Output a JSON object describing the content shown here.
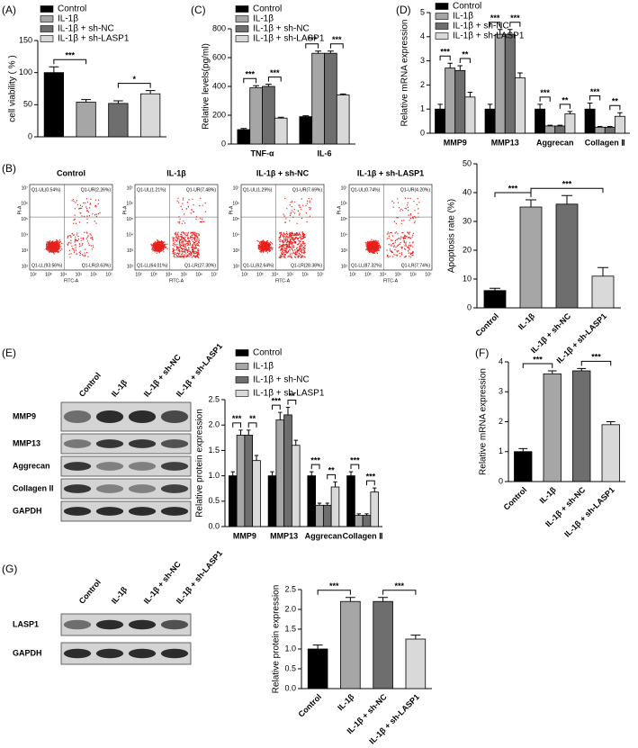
{
  "panel_labels": [
    "(A)",
    "(B)",
    "(C)",
    "(D)",
    "(E)",
    "(F)",
    "(G)"
  ],
  "flow_plots": {
    "x_label": "FITC-A",
    "y_label": "PI-A",
    "ticks": [
      "10²",
      "10³",
      "10⁴",
      "10⁵",
      "10⁶",
      "10⁷"
    ],
    "plots": [
      {
        "title": "Control",
        "quadrants": [
          "Q1-UL(0.54%)",
          "Q1-UR(2.26%)",
          "Q1-LL(93.56%)",
          "Q1-LR(3.63%)"
        ]
      },
      {
        "title": "IL-1β",
        "quadrants": [
          "Q1-UL(1.21%)",
          "Q1-UR(7.48%)",
          "Q1-LL(64.01%)",
          "Q1-LR(27.30%)"
        ]
      },
      {
        "title": "IL-1β + sh-NC",
        "quadrants": [
          "Q1-UL(1.29%)",
          "Q1-UR(7.69%)",
          "Q1-LL(62.64%)",
          "Q1-LR(28.38%)"
        ]
      },
      {
        "title": "IL-1β + sh-LASP1",
        "quadrants": [
          "Q1-UL(0.74%)",
          "Q1-UR(4.20%)",
          "Q1-LL(87.32%)",
          "Q1-LR(7.74%)"
        ]
      }
    ]
  },
  "blot_E": {
    "lanes": [
      "Control",
      "IL-1β",
      "IL-1β + sh-NC",
      "IL-1β + sh-LASP1"
    ],
    "rows": [
      "MMP9",
      "MMP13",
      "Aggrecan",
      "Collagen II",
      "GAPDH"
    ]
  },
  "blot_G": {
    "lanes": [
      "Control",
      "IL-1β",
      "IL-1β + sh-NC",
      "IL-1β + sh-LASP1"
    ],
    "rows": [
      "LASP1",
      "GAPDH"
    ]
  },
  "chart_data": [
    {
      "type": "bar",
      "ylabel": "cell viability ( % )",
      "categories": [
        "Control",
        "IL-1β",
        "IL-1β + sh-NC",
        "IL-1β + sh-LASP1"
      ],
      "colors": [
        "#000000",
        "#a6a6a6",
        "#6e6e6e",
        "#d9d9d9"
      ],
      "values": [
        100,
        54,
        52,
        67
      ],
      "errors": [
        9,
        4,
        4,
        5
      ],
      "ylim": [
        0,
        150
      ],
      "yticks": [
        0,
        50,
        100,
        150
      ],
      "legend": "top-left",
      "annotations": [
        "***",
        "*"
      ]
    },
    {
      "type": "grouped_bar",
      "ylabel": "Relative levels(pg/ml)",
      "categories": [
        "TNF-α",
        "IL-6"
      ],
      "series": [
        {
          "name": "Control",
          "color": "#000000",
          "values": [
            100,
            190
          ],
          "errors": [
            8,
            6
          ]
        },
        {
          "name": "IL-1β",
          "color": "#a6a6a6",
          "values": [
            390,
            630
          ],
          "errors": [
            15,
            15
          ]
        },
        {
          "name": "IL-1β + sh-NC",
          "color": "#6e6e6e",
          "values": [
            400,
            630
          ],
          "errors": [
            15,
            15
          ]
        },
        {
          "name": "IL-1β + sh-LASP1",
          "color": "#d9d9d9",
          "values": [
            180,
            340
          ],
          "errors": [
            6,
            8
          ]
        }
      ],
      "ylim": [
        0,
        800
      ],
      "yticks": [
        0,
        200,
        400,
        600,
        800
      ],
      "legend": "top-left",
      "annotations": [
        "***",
        "***",
        "***",
        "***"
      ]
    },
    {
      "type": "grouped_bar",
      "ylabel": "Relative mRNA expression",
      "categories": [
        "MMP9",
        "MMP13",
        "Aggrecan",
        "Collagen Ⅱ"
      ],
      "series": [
        {
          "name": "Control",
          "color": "#000000",
          "values": [
            1,
            1,
            1,
            1
          ],
          "errors": [
            0.2,
            0.2,
            0.2,
            0.25
          ]
        },
        {
          "name": "IL-1β",
          "color": "#a6a6a6",
          "values": [
            2.7,
            4.1,
            0.3,
            0.25
          ],
          "errors": [
            0.2,
            0.2,
            0.03,
            0.03
          ]
        },
        {
          "name": "IL-1β + sh-NC",
          "color": "#6e6e6e",
          "values": [
            2.6,
            4.1,
            0.3,
            0.25
          ],
          "errors": [
            0.2,
            0.2,
            0.03,
            0.03
          ]
        },
        {
          "name": "IL-1β + sh-LASP1",
          "color": "#d9d9d9",
          "values": [
            1.5,
            2.3,
            0.8,
            0.7
          ],
          "errors": [
            0.2,
            0.2,
            0.1,
            0.15
          ]
        }
      ],
      "ylim": [
        0,
        5
      ],
      "yticks": [
        0,
        1,
        2,
        3,
        4,
        5
      ],
      "legend": "top-left",
      "annotations": [
        "***",
        "**",
        "***",
        "***",
        "***",
        "**",
        "***",
        "**"
      ]
    },
    {
      "type": "bar",
      "ylabel": "Apoptosis rate (%)",
      "categories": [
        "Control",
        "IL-1β",
        "IL-1β + sh-NC",
        "IL-1β + sh-LASP1"
      ],
      "colors": [
        "#000000",
        "#a6a6a6",
        "#6e6e6e",
        "#d9d9d9"
      ],
      "values": [
        6,
        35,
        36,
        11
      ],
      "errors": [
        0.8,
        2.5,
        3,
        3
      ],
      "ylim": [
        0,
        50
      ],
      "yticks": [
        0,
        10,
        20,
        30,
        40,
        50
      ],
      "annotations": [
        "***",
        "***"
      ]
    },
    {
      "type": "grouped_bar",
      "ylabel": "Relative protein expression",
      "categories": [
        "MMP9",
        "MMP13",
        "Aggrecan",
        "Collagen Ⅱ"
      ],
      "series": [
        {
          "name": "Control",
          "color": "#000000",
          "values": [
            1,
            1,
            1,
            1
          ],
          "errors": [
            0.08,
            0.08,
            0.08,
            0.08
          ]
        },
        {
          "name": "IL-1β",
          "color": "#a6a6a6",
          "values": [
            1.8,
            2.1,
            0.42,
            0.22
          ],
          "errors": [
            0.1,
            0.15,
            0.04,
            0.03
          ]
        },
        {
          "name": "IL-1β + sh-NC",
          "color": "#6e6e6e",
          "values": [
            1.8,
            2.2,
            0.42,
            0.22
          ],
          "errors": [
            0.1,
            0.15,
            0.04,
            0.03
          ]
        },
        {
          "name": "IL-1β + sh-LASP1",
          "color": "#d9d9d9",
          "values": [
            1.3,
            1.6,
            0.78,
            0.68
          ],
          "errors": [
            0.1,
            0.1,
            0.1,
            0.08
          ]
        }
      ],
      "ylim": [
        0,
        2.5
      ],
      "yticks": [
        {
          "value": 0,
          "label": "0.0"
        },
        {
          "value": 0.5,
          "label": "0.5"
        },
        {
          "value": 1,
          "label": "1.0"
        },
        {
          "value": 1.5,
          "label": "1.5"
        },
        {
          "value": 2,
          "label": "2.0"
        },
        {
          "value": 2.5,
          "label": "2.5"
        }
      ],
      "legend": "top-left",
      "annotations": [
        "***",
        "**",
        "***",
        "**",
        "***",
        "**",
        "***",
        "***"
      ]
    },
    {
      "type": "bar",
      "ylabel": "Relative mRNA expression",
      "categories": [
        "Control",
        "IL-1β",
        "IL-1β + sh-NC",
        "IL-1β + sh-LASP1"
      ],
      "colors": [
        "#000000",
        "#a6a6a6",
        "#6e6e6e",
        "#d9d9d9"
      ],
      "values": [
        1,
        3.6,
        3.7,
        1.9
      ],
      "errors": [
        0.1,
        0.1,
        0.08,
        0.1
      ],
      "ylim": [
        0,
        4
      ],
      "yticks": [
        0,
        1,
        2,
        3,
        4
      ],
      "annotations": [
        "***",
        "***"
      ]
    },
    {
      "type": "bar",
      "ylabel": "Relative protein expression",
      "categories": [
        "Control",
        "IL-1β",
        "IL-1β + sh-NC",
        "IL-1β + sh-LASP1"
      ],
      "colors": [
        "#000000",
        "#a6a6a6",
        "#6e6e6e",
        "#d9d9d9"
      ],
      "values": [
        1,
        2.2,
        2.2,
        1.25
      ],
      "errors": [
        0.1,
        0.1,
        0.1,
        0.1
      ],
      "ylim": [
        0,
        2.5
      ],
      "yticks": [
        {
          "value": 0,
          "label": "0.0"
        },
        {
          "value": 0.5,
          "label": "0.5"
        },
        {
          "value": 1,
          "label": "1.0"
        },
        {
          "value": 1.5,
          "label": "1.5"
        },
        {
          "value": 2,
          "label": "2.0"
        },
        {
          "value": 2.5,
          "label": "2.5"
        }
      ],
      "annotations": [
        "***",
        "***"
      ]
    }
  ]
}
